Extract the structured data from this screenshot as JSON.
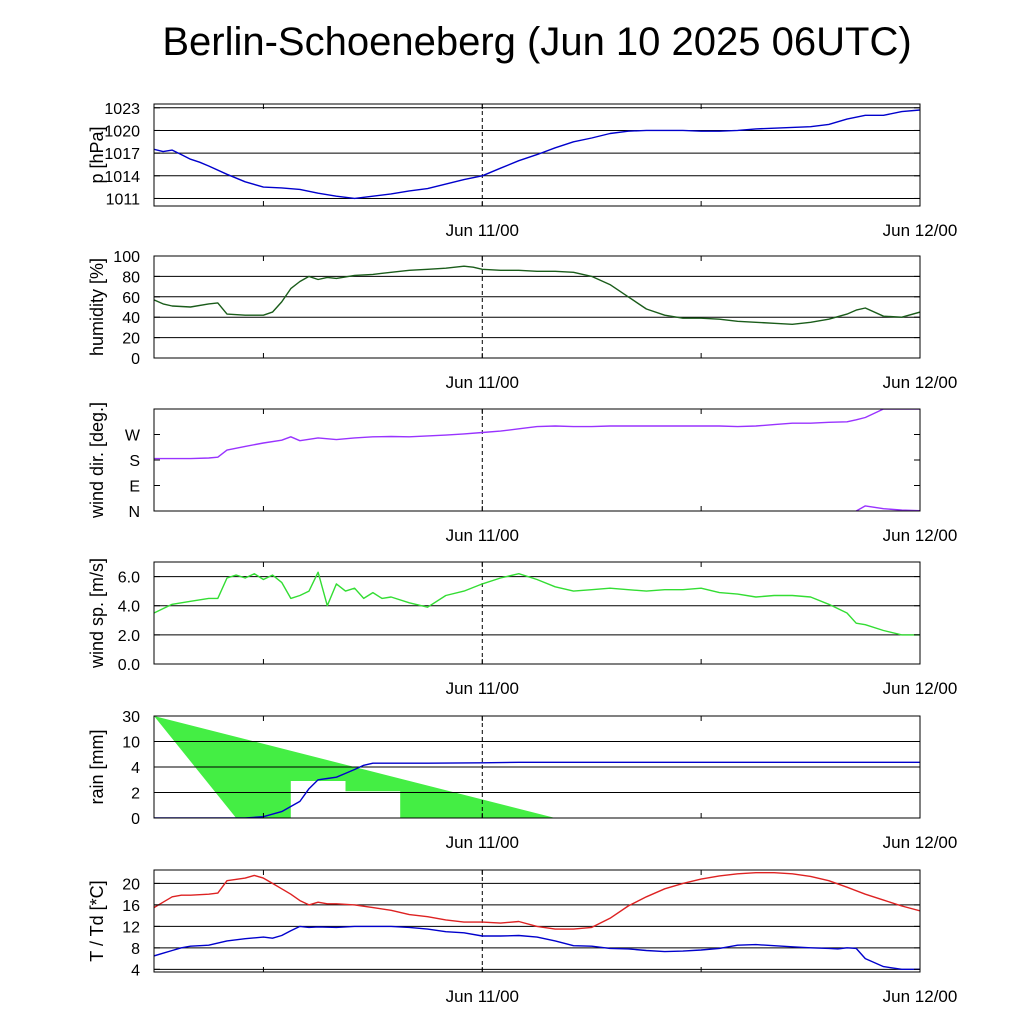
{
  "title": "Berlin-Schoeneberg (Jun 10 2025 06UTC)",
  "chart_data": [
    {
      "type": "line",
      "ylabel": "p [hPa]",
      "xlim": [
        0,
        42
      ],
      "ylim": [
        1010,
        1023.5
      ],
      "yticks": [
        1011,
        1014,
        1017,
        1020,
        1023
      ],
      "x_tick_labels": [
        {
          "x": 18,
          "label": "Jun 11/00"
        },
        {
          "x": 42,
          "label": "Jun 12/00"
        }
      ],
      "grid": true,
      "series": [
        {
          "color": "#0000cc",
          "x": [
            0,
            0.5,
            1,
            1.5,
            2,
            2.5,
            3,
            4,
            5,
            6,
            7,
            8,
            9,
            10,
            11,
            12,
            13,
            14,
            15,
            16,
            17,
            18,
            19,
            20,
            21,
            22,
            23,
            24,
            25,
            26,
            27,
            28,
            29,
            30,
            31,
            32,
            33,
            34,
            35,
            36,
            37,
            38,
            39,
            40,
            41,
            42
          ],
          "values": [
            1017.5,
            1017.2,
            1017.4,
            1016.8,
            1016.2,
            1015.8,
            1015.3,
            1014.2,
            1013.2,
            1012.5,
            1012.4,
            1012.2,
            1011.7,
            1011.3,
            1011.0,
            1011.3,
            1011.6,
            1012.0,
            1012.3,
            1012.9,
            1013.5,
            1014.0,
            1015.0,
            1016.0,
            1016.8,
            1017.7,
            1018.5,
            1019.0,
            1019.6,
            1019.9,
            1020.0,
            1020.0,
            1020.0,
            1019.9,
            1019.9,
            1020.0,
            1020.2,
            1020.3,
            1020.4,
            1020.5,
            1020.8,
            1021.5,
            1022.0,
            1022.0,
            1022.5,
            1022.7
          ]
        }
      ]
    },
    {
      "type": "line",
      "ylabel": "humidity [%]",
      "xlim": [
        0,
        42
      ],
      "ylim": [
        0,
        100
      ],
      "yticks": [
        0,
        20,
        40,
        60,
        80,
        100
      ],
      "x_tick_labels": [
        {
          "x": 18,
          "label": "Jun 11/00"
        },
        {
          "x": 42,
          "label": "Jun 12/00"
        }
      ],
      "grid": true,
      "series": [
        {
          "color": "#1a5c1a",
          "x": [
            0,
            0.5,
            1,
            2,
            3,
            3.5,
            4,
            5,
            6,
            6.5,
            7,
            7.5,
            8,
            8.5,
            9,
            9.5,
            10,
            11,
            12,
            13,
            14,
            15,
            16,
            17,
            17.5,
            18,
            19,
            20,
            21,
            22,
            23,
            24,
            25,
            26,
            27,
            28,
            29,
            30,
            31,
            32,
            33,
            34,
            35,
            36,
            37,
            38,
            38.5,
            39,
            40,
            41,
            42
          ],
          "values": [
            57,
            53,
            51,
            50,
            53,
            54,
            43,
            42,
            42,
            45,
            55,
            68,
            75,
            80,
            77,
            79,
            78,
            81,
            82,
            84,
            86,
            87,
            88,
            90,
            89,
            87,
            86,
            86,
            85,
            85,
            84,
            80,
            72,
            60,
            48,
            42,
            39,
            39,
            38,
            36,
            35,
            34,
            33,
            35,
            38,
            43,
            47,
            49,
            41,
            40,
            45
          ]
        }
      ]
    },
    {
      "type": "line",
      "ylabel": "wind dir. [deg.]",
      "xlim": [
        0,
        42
      ],
      "ylim": [
        0,
        360
      ],
      "yticks": [
        0,
        90,
        180,
        270
      ],
      "ytick_labels": [
        "N",
        "E",
        "S",
        "W"
      ],
      "x_tick_labels": [
        {
          "x": 18,
          "label": "Jun 11/00"
        },
        {
          "x": 42,
          "label": "Jun 12/00"
        }
      ],
      "grid": false,
      "series": [
        {
          "color": "#9933ff",
          "x": [
            0,
            1,
            2,
            3,
            3.5,
            4,
            5,
            6,
            7,
            7.5,
            8,
            9,
            10,
            11,
            12,
            13,
            14,
            15,
            16,
            17,
            18,
            19,
            20,
            21,
            22,
            23,
            24,
            25,
            26,
            27,
            28,
            29,
            30,
            31,
            32,
            33,
            34,
            35,
            36,
            37,
            38,
            38.5,
            39,
            40,
            41,
            42
          ],
          "values": [
            185,
            185,
            185,
            187,
            190,
            215,
            228,
            240,
            250,
            262,
            248,
            258,
            252,
            258,
            262,
            263,
            262,
            265,
            268,
            272,
            277,
            282,
            290,
            298,
            300,
            298,
            298,
            300,
            300,
            300,
            300,
            300,
            300,
            300,
            298,
            300,
            305,
            310,
            310,
            313,
            315,
            322,
            330,
            360,
            360,
            360
          ]
        },
        {
          "color": "#9933ff",
          "x": [
            38.5,
            39,
            40,
            41,
            42
          ],
          "values": [
            0,
            18,
            8,
            3,
            1
          ]
        }
      ]
    },
    {
      "type": "line",
      "ylabel": "wind sp. [m/s]",
      "xlim": [
        0,
        42
      ],
      "ylim": [
        0,
        7
      ],
      "yticks": [
        0,
        2,
        4,
        6
      ],
      "ytick_labels": [
        "0.0",
        "2.0",
        "4.0",
        "6.0"
      ],
      "x_tick_labels": [
        {
          "x": 18,
          "label": "Jun 11/00"
        },
        {
          "x": 42,
          "label": "Jun 12/00"
        }
      ],
      "grid": true,
      "series": [
        {
          "color": "#33dd33",
          "x": [
            0,
            0.5,
            1,
            2,
            3,
            3.5,
            4,
            4.5,
            5,
            5.5,
            6,
            6.5,
            7,
            7.5,
            8,
            8.5,
            9,
            9.5,
            10,
            10.5,
            11,
            11.5,
            12,
            12.5,
            13,
            14,
            15,
            16,
            17,
            18,
            19,
            20,
            21,
            22,
            23,
            24,
            25,
            26,
            27,
            28,
            29,
            30,
            31,
            32,
            33,
            34,
            35,
            36,
            37,
            38,
            38.5,
            39,
            40,
            41,
            42
          ],
          "values": [
            3.5,
            3.8,
            4.1,
            4.3,
            4.5,
            4.5,
            5.9,
            6.1,
            5.9,
            6.2,
            5.8,
            6.1,
            5.6,
            4.5,
            4.7,
            5.0,
            6.3,
            4.0,
            5.5,
            5.0,
            5.2,
            4.5,
            4.9,
            4.5,
            4.6,
            4.2,
            3.9,
            4.7,
            5.0,
            5.5,
            5.9,
            6.2,
            5.8,
            5.3,
            5.0,
            5.1,
            5.2,
            5.1,
            5.0,
            5.1,
            5.1,
            5.2,
            4.9,
            4.8,
            4.6,
            4.7,
            4.7,
            4.6,
            4.1,
            3.5,
            2.8,
            2.7,
            2.3,
            2.0,
            2.0
          ]
        }
      ]
    },
    {
      "type": "area",
      "ylabel": "rain [mm]",
      "xlim": [
        0,
        42
      ],
      "ylim": [
        0,
        30
      ],
      "yticks": [
        0,
        2,
        4,
        10,
        30
      ],
      "axis_scale": "nonlinear",
      "x_tick_labels": [
        {
          "x": 18,
          "label": "Jun 11/00"
        },
        {
          "x": 42,
          "label": "Jun 12/00"
        }
      ],
      "grid": true,
      "series": [
        {
          "color": "#44ee44",
          "x": [
            0,
            4.5,
            7.5,
            7.5,
            10.5,
            10.5,
            13.5,
            13.5,
            22
          ],
          "values": [
            30,
            0,
            0,
            2.9,
            2.9,
            2.1,
            2.1,
            0,
            0
          ]
        },
        {
          "color": "#0000cc",
          "x": [
            0,
            5,
            6,
            7,
            8,
            8.5,
            9,
            9.5,
            10,
            10.5,
            11,
            11.5,
            12,
            15,
            18,
            20,
            25,
            30,
            35,
            42
          ],
          "values": [
            0,
            0,
            0.1,
            0.5,
            1.3,
            2.3,
            3.0,
            3.1,
            3.2,
            3.5,
            3.8,
            4.4,
            4.9,
            4.9,
            5.0,
            5.1,
            5.1,
            5.1,
            5.1,
            5.1
          ]
        }
      ]
    },
    {
      "type": "line",
      "ylabel": "T / Td [*C]",
      "xlim": [
        0,
        42
      ],
      "ylim": [
        3.5,
        22.5
      ],
      "yticks": [
        4,
        8,
        12,
        16,
        20
      ],
      "x_tick_labels": [
        {
          "x": 18,
          "label": "Jun 11/00"
        },
        {
          "x": 42,
          "label": "Jun 12/00"
        }
      ],
      "grid": true,
      "series": [
        {
          "color": "#dd2222",
          "x": [
            0,
            0.5,
            1,
            1.5,
            2,
            3,
            3.5,
            4,
            5,
            5.5,
            6,
            6.5,
            7,
            7.5,
            8,
            8.5,
            9,
            9.5,
            10,
            11,
            12,
            13,
            14,
            15,
            16,
            17,
            18,
            19,
            20,
            21,
            22,
            23,
            24,
            25,
            26,
            27,
            28,
            29,
            30,
            31,
            32,
            33,
            34,
            35,
            36,
            37,
            38,
            39,
            40,
            41,
            42
          ],
          "values": [
            15.5,
            16.5,
            17.5,
            17.8,
            17.8,
            18.0,
            18.2,
            20.5,
            21.0,
            21.5,
            21.0,
            20.0,
            19.0,
            18.0,
            16.8,
            16.0,
            16.5,
            16.2,
            16.2,
            16.0,
            15.5,
            15.0,
            14.2,
            13.8,
            13.2,
            12.8,
            12.8,
            12.6,
            12.9,
            12.0,
            11.5,
            11.5,
            11.8,
            13.5,
            15.8,
            17.5,
            19.0,
            20.0,
            20.8,
            21.4,
            21.8,
            22.0,
            22.0,
            21.8,
            21.3,
            20.5,
            19.3,
            18.0,
            16.9,
            15.8,
            14.9
          ]
        },
        {
          "color": "#0000cc",
          "x": [
            0,
            0.5,
            1,
            1.5,
            2,
            3,
            4,
            5,
            6,
            6.5,
            7,
            7.5,
            8,
            8.5,
            9,
            10,
            11,
            12,
            13,
            14,
            15,
            16,
            17,
            18,
            19,
            20,
            21,
            22,
            23,
            24,
            25,
            26,
            27,
            28,
            29,
            30,
            31,
            32,
            33,
            34,
            35,
            36,
            37,
            37.5,
            38,
            38.5,
            39,
            40,
            41,
            42
          ],
          "values": [
            6.5,
            7.0,
            7.5,
            8.0,
            8.3,
            8.5,
            9.3,
            9.7,
            10.0,
            9.8,
            10.3,
            11.2,
            12.0,
            11.8,
            11.9,
            11.8,
            12.0,
            12.0,
            12.0,
            11.8,
            11.5,
            11.0,
            10.8,
            10.2,
            10.2,
            10.3,
            10.0,
            9.3,
            8.4,
            8.3,
            7.9,
            7.8,
            7.5,
            7.3,
            7.4,
            7.6,
            7.9,
            8.5,
            8.6,
            8.4,
            8.2,
            8.0,
            7.9,
            7.8,
            8.0,
            7.9,
            6.0,
            4.5,
            4.0,
            4.0
          ]
        }
      ]
    }
  ]
}
